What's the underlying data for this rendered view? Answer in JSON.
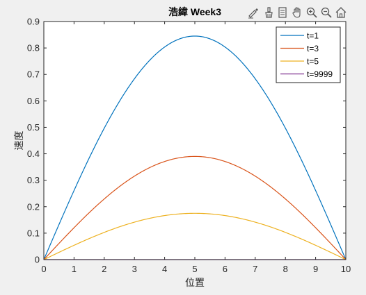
{
  "toolbar": {
    "icons": [
      "edit-plot-icon",
      "brush-icon",
      "legend-toggle-icon",
      "pan-hand-icon",
      "zoom-in-icon",
      "zoom-out-icon",
      "home-icon"
    ]
  },
  "chart_data": {
    "type": "line",
    "title": "浩緯 Week3",
    "xlabel": "位置",
    "ylabel": "速度",
    "xlim": [
      0,
      10
    ],
    "ylim": [
      0,
      0.9
    ],
    "xticks": [
      "0",
      "1",
      "2",
      "3",
      "4",
      "5",
      "6",
      "7",
      "8",
      "9",
      "10"
    ],
    "yticks": [
      "0",
      "0.1",
      "0.2",
      "0.3",
      "0.4",
      "0.5",
      "0.6",
      "0.7",
      "0.8",
      "0.9"
    ],
    "grid": false,
    "legend_position": "top-right",
    "x": [
      0,
      0.5,
      1,
      1.5,
      2,
      2.5,
      3,
      3.5,
      4,
      4.5,
      5,
      5.5,
      6,
      6.5,
      7,
      7.5,
      8,
      8.5,
      9,
      9.5,
      10
    ],
    "series": [
      {
        "name": "t=1",
        "color": "#0072bd",
        "values": [
          0,
          0.132,
          0.261,
          0.383,
          0.497,
          0.598,
          0.684,
          0.753,
          0.804,
          0.835,
          0.845,
          0.835,
          0.804,
          0.753,
          0.684,
          0.598,
          0.497,
          0.383,
          0.261,
          0.132,
          0
        ]
      },
      {
        "name": "t=3",
        "color": "#d95319",
        "values": [
          0,
          0.061,
          0.12,
          0.177,
          0.229,
          0.276,
          0.315,
          0.347,
          0.371,
          0.385,
          0.39,
          0.385,
          0.371,
          0.347,
          0.315,
          0.276,
          0.229,
          0.177,
          0.12,
          0.061,
          0
        ]
      },
      {
        "name": "t=5",
        "color": "#edb120",
        "values": [
          0,
          0.028,
          0.054,
          0.079,
          0.103,
          0.124,
          0.142,
          0.156,
          0.167,
          0.173,
          0.175,
          0.173,
          0.167,
          0.156,
          0.142,
          0.124,
          0.103,
          0.079,
          0.054,
          0.028,
          0
        ]
      },
      {
        "name": "t=9999",
        "color": "#7e2f8e",
        "values": [
          0,
          0,
          0,
          0,
          0,
          0,
          0,
          0,
          0,
          0,
          0,
          0,
          0,
          0,
          0,
          0,
          0,
          0,
          0,
          0,
          0
        ]
      }
    ]
  }
}
